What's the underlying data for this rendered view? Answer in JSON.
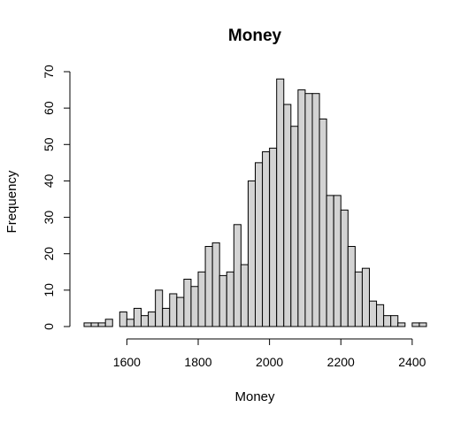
{
  "chart_data": {
    "type": "bar",
    "title": "Money",
    "xlabel": "Money",
    "ylabel": "Frequency",
    "bin_width": 20,
    "x": [
      1490,
      1510,
      1530,
      1550,
      1570,
      1590,
      1610,
      1630,
      1650,
      1670,
      1690,
      1710,
      1730,
      1750,
      1770,
      1790,
      1810,
      1830,
      1850,
      1870,
      1890,
      1910,
      1930,
      1950,
      1970,
      1990,
      2010,
      2030,
      2050,
      2070,
      2090,
      2110,
      2130,
      2150,
      2170,
      2190,
      2210,
      2230,
      2250,
      2270,
      2290,
      2310,
      2330,
      2350,
      2370,
      2390,
      2410,
      2430
    ],
    "values": [
      1,
      1,
      1,
      2,
      0,
      4,
      2,
      5,
      3,
      4,
      10,
      5,
      9,
      8,
      13,
      11,
      15,
      22,
      23,
      14,
      15,
      28,
      17,
      40,
      45,
      48,
      49,
      68,
      61,
      55,
      65,
      64,
      64,
      57,
      36,
      36,
      32,
      22,
      15,
      16,
      7,
      6,
      3,
      3,
      1,
      0,
      1,
      1
    ],
    "xlim": [
      1480,
      2440
    ],
    "ylim": [
      0,
      70
    ],
    "x_ticks": [
      "1600",
      "1800",
      "2000",
      "2200",
      "2400"
    ],
    "y_ticks": [
      "0",
      "10",
      "20",
      "30",
      "40",
      "50",
      "60",
      "70"
    ],
    "grid": false,
    "colors": {
      "bar_fill": "#d3d3d3",
      "bar_stroke": "#000000"
    }
  }
}
